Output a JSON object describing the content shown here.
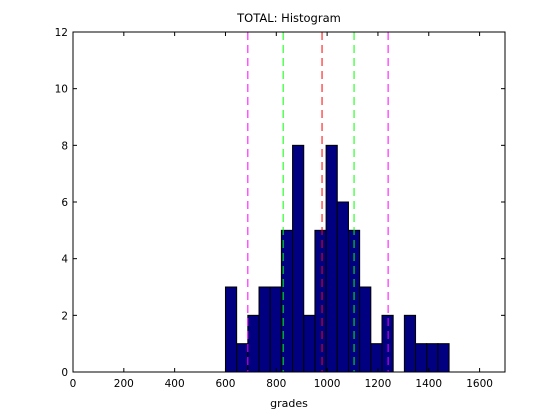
{
  "chart_data": {
    "type": "bar",
    "title": "TOTAL: Histogram",
    "xlabel": "grades",
    "ylabel": "",
    "xlim": [
      0,
      1700
    ],
    "ylim": [
      0,
      12
    ],
    "xticks": [
      0,
      200,
      400,
      600,
      800,
      1000,
      1200,
      1400,
      1600
    ],
    "yticks": [
      0,
      2,
      4,
      6,
      8,
      10,
      12
    ],
    "grid": false,
    "bar_width": 44,
    "bar_color": "#000080",
    "bar_edge_color": "#000000",
    "bins": [
      {
        "x": 600,
        "count": 3
      },
      {
        "x": 644,
        "count": 1
      },
      {
        "x": 688,
        "count": 2
      },
      {
        "x": 732,
        "count": 3
      },
      {
        "x": 776,
        "count": 3
      },
      {
        "x": 820,
        "count": 5
      },
      {
        "x": 864,
        "count": 8
      },
      {
        "x": 908,
        "count": 2
      },
      {
        "x": 952,
        "count": 5
      },
      {
        "x": 996,
        "count": 8
      },
      {
        "x": 1040,
        "count": 6
      },
      {
        "x": 1084,
        "count": 5
      },
      {
        "x": 1128,
        "count": 3
      },
      {
        "x": 1172,
        "count": 1
      },
      {
        "x": 1216,
        "count": 2
      },
      {
        "x": 1260,
        "count": 0
      },
      {
        "x": 1304,
        "count": 2
      },
      {
        "x": 1348,
        "count": 1
      },
      {
        "x": 1392,
        "count": 1
      },
      {
        "x": 1436,
        "count": 1
      }
    ],
    "reference_lines": [
      {
        "x": 688,
        "color": "#ff00ff"
      },
      {
        "x": 827,
        "color": "#00ff00"
      },
      {
        "x": 980,
        "color": "#ff0000"
      },
      {
        "x": 1106,
        "color": "#00ff00"
      },
      {
        "x": 1240,
        "color": "#ff00ff"
      }
    ]
  }
}
